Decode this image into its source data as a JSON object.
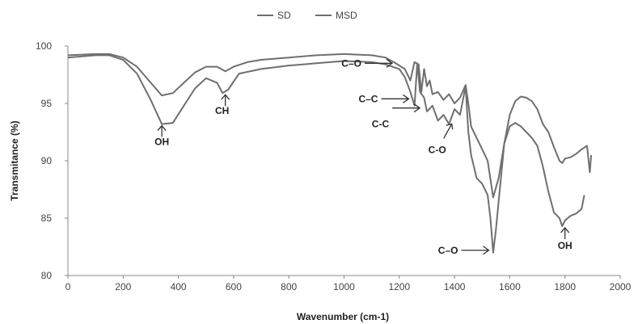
{
  "chart_data": {
    "type": "line",
    "title": "",
    "xlabel": "Wavenumber (cm-1)",
    "ylabel": "Transmitance (%)",
    "xlim": [
      0,
      2000
    ],
    "ylim": [
      80,
      100
    ],
    "xticks": [
      0,
      200,
      400,
      600,
      800,
      1000,
      1200,
      1400,
      1600,
      1800,
      2000
    ],
    "yticks": [
      80,
      85,
      90,
      95,
      100
    ],
    "grid": false,
    "legend_position": "top-center",
    "series": [
      {
        "name": "SD",
        "color": "#6f6f6f",
        "x": [
          0,
          100,
          150,
          200,
          250,
          300,
          340,
          380,
          420,
          460,
          500,
          540,
          570,
          600,
          650,
          700,
          800,
          900,
          1000,
          1100,
          1150,
          1180,
          1200,
          1220,
          1240,
          1255,
          1270,
          1280,
          1290,
          1300,
          1310,
          1320,
          1340,
          1360,
          1380,
          1400,
          1420,
          1440,
          1450,
          1460,
          1480,
          1500,
          1520,
          1540,
          1560,
          1580,
          1600,
          1620,
          1640,
          1660,
          1680,
          1700,
          1720,
          1740,
          1760,
          1780,
          1790,
          1800,
          1820,
          1840,
          1860,
          1880,
          1890,
          1895
        ],
        "y": [
          99.2,
          99.3,
          99.3,
          99.0,
          98.2,
          96.8,
          95.7,
          95.9,
          96.8,
          97.7,
          98.2,
          98.2,
          97.8,
          98.2,
          98.6,
          98.8,
          99.0,
          99.2,
          99.3,
          99.2,
          99.0,
          98.6,
          98.3,
          98.0,
          97.0,
          98.6,
          98.4,
          96.0,
          98.0,
          96.5,
          97.0,
          95.8,
          96.0,
          95.3,
          95.8,
          95.0,
          95.5,
          96.6,
          95.0,
          93.0,
          92.0,
          91.0,
          90.0,
          86.8,
          88.5,
          91.5,
          94.0,
          95.2,
          95.6,
          95.5,
          95.2,
          94.5,
          93.2,
          92.5,
          91.2,
          90.0,
          89.8,
          90.2,
          90.3,
          90.6,
          91.0,
          91.3,
          89.0,
          90.5
        ]
      },
      {
        "name": "MSD",
        "color": "#6f6f6f",
        "x": [
          0,
          100,
          150,
          200,
          250,
          300,
          340,
          380,
          420,
          460,
          500,
          540,
          560,
          580,
          620,
          700,
          800,
          900,
          1000,
          1100,
          1150,
          1200,
          1220,
          1240,
          1255,
          1265,
          1275,
          1290,
          1300,
          1320,
          1340,
          1360,
          1380,
          1400,
          1420,
          1440,
          1450,
          1460,
          1480,
          1500,
          1520,
          1530,
          1540,
          1550,
          1560,
          1570,
          1580,
          1600,
          1620,
          1640,
          1660,
          1680,
          1700,
          1720,
          1740,
          1760,
          1780,
          1790,
          1800,
          1820,
          1840,
          1860,
          1870
        ],
        "y": [
          99.0,
          99.2,
          99.2,
          98.8,
          97.6,
          95.3,
          93.2,
          93.3,
          94.8,
          96.3,
          97.2,
          96.8,
          95.9,
          96.2,
          97.6,
          98.0,
          98.3,
          98.5,
          98.7,
          98.6,
          98.4,
          98.0,
          97.3,
          96.0,
          94.8,
          98.5,
          96.0,
          95.5,
          94.3,
          94.8,
          93.5,
          94.0,
          93.2,
          94.5,
          94.0,
          96.5,
          92.5,
          90.5,
          88.5,
          88.0,
          87.0,
          85.0,
          82.0,
          84.0,
          86.5,
          89.0,
          91.5,
          93.0,
          93.3,
          93.0,
          92.5,
          92.0,
          91.3,
          89.5,
          87.3,
          85.5,
          85.0,
          84.3,
          84.8,
          85.2,
          85.4,
          85.8,
          87.0
        ]
      }
    ],
    "annotations": [
      {
        "text": "OH",
        "x": 340,
        "y": 93.2
      },
      {
        "text": "CH",
        "x": 570,
        "y": 95.9
      },
      {
        "text": "C–O",
        "x": 1180,
        "y": 98.5
      },
      {
        "text": "C–C",
        "x": 1240,
        "y": 95.4
      },
      {
        "text": "C-C",
        "x": 1280,
        "y": 94.6
      },
      {
        "text": "C-O",
        "x": 1390,
        "y": 93.5
      },
      {
        "text": "C–O",
        "x": 1530,
        "y": 82.2
      },
      {
        "text": "OH",
        "x": 1800,
        "y": 84.3
      }
    ]
  }
}
